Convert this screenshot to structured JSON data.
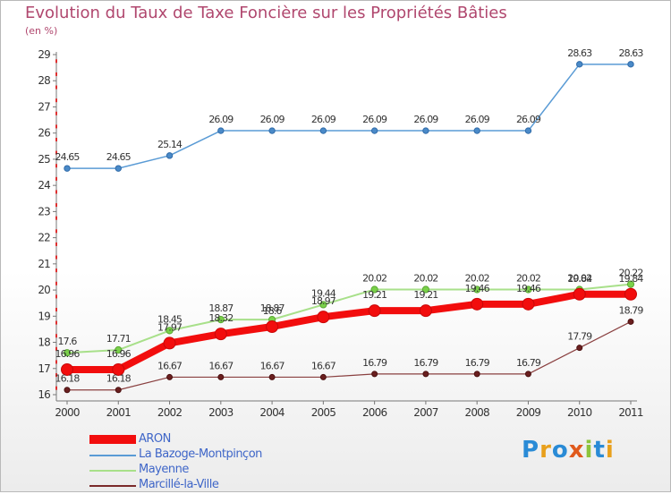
{
  "title": "Evolution du Taux de Taxe Foncière sur les Propriétés Bâties",
  "unit_label": "(en %)",
  "logo": {
    "text": "Proxiti",
    "colors": [
      "#2a8bd6",
      "#e8a01c",
      "#2a8bd6",
      "#e05a1c",
      "#8cc43c",
      "#2a8bd6",
      "#e8a01c"
    ]
  },
  "colors": {
    "ARON": "#f20d0d",
    "La Bazoge-Montpinçon": "#5a9bd5",
    "Mayenne": "#a8e08a",
    "Marcillé-la-Ville": "#7a2a2a",
    "title": "#b0476e",
    "axis_red": "#e03030",
    "label": "#333333"
  },
  "chart_data": {
    "type": "line",
    "title": "Evolution du Taux de Taxe Foncière sur les Propriétés Bâties",
    "ylabel": "(en %)",
    "x": [
      "2000",
      "2001",
      "2002",
      "2003",
      "2004",
      "2005",
      "2006",
      "2007",
      "2008",
      "2009",
      "2010",
      "2011"
    ],
    "ylim": [
      16,
      29
    ],
    "yticks": [
      16,
      17,
      18,
      19,
      20,
      21,
      22,
      23,
      24,
      25,
      26,
      27,
      28,
      29
    ],
    "series": [
      {
        "name": "La Bazoge-Montpinçon",
        "values": [
          24.65,
          24.65,
          25.14,
          26.09,
          26.09,
          26.09,
          26.09,
          26.09,
          26.09,
          26.09,
          28.63,
          28.63
        ],
        "labels": [
          "24.65",
          "24.65",
          "25.14",
          "26.09",
          "26.09",
          "26.09",
          "26.09",
          "26.09",
          "26.09",
          "26.09",
          "28.63",
          "28.63"
        ]
      },
      {
        "name": "Mayenne",
        "values": [
          17.6,
          17.71,
          18.45,
          18.87,
          18.87,
          19.44,
          20.02,
          20.02,
          20.02,
          20.02,
          20.02,
          20.22
        ],
        "labels": [
          "17.6",
          "17.71",
          "18.45",
          "18.87",
          "18.87",
          "19.44",
          "20.02",
          "20.02",
          "20.02",
          "20.02",
          "20.02",
          "20.22"
        ]
      },
      {
        "name": "ARON",
        "values": [
          16.96,
          16.96,
          17.97,
          18.32,
          18.6,
          18.97,
          19.21,
          19.21,
          19.46,
          19.46,
          19.84,
          19.84
        ],
        "labels": [
          "16.96",
          "16.96",
          "17.97",
          "18.32",
          "18.6",
          "18.97",
          "19.21",
          "19.21",
          "19.46",
          "19.46",
          "19.84",
          "19.84"
        ]
      },
      {
        "name": "Marcillé-la-Ville",
        "values": [
          16.18,
          16.18,
          16.67,
          16.67,
          16.67,
          16.67,
          16.79,
          16.79,
          16.79,
          16.79,
          17.79,
          18.79
        ],
        "labels": [
          "16.18",
          "16.18",
          "16.67",
          "16.67",
          "16.67",
          "16.67",
          "16.79",
          "16.79",
          "16.79",
          "16.79",
          "17.79",
          "18.79"
        ]
      }
    ],
    "legend": [
      "ARON",
      "La Bazoge-Montpinçon",
      "Mayenne",
      "Marcillé-la-Ville"
    ],
    "grid": false,
    "legend_position": "bottom-left"
  }
}
